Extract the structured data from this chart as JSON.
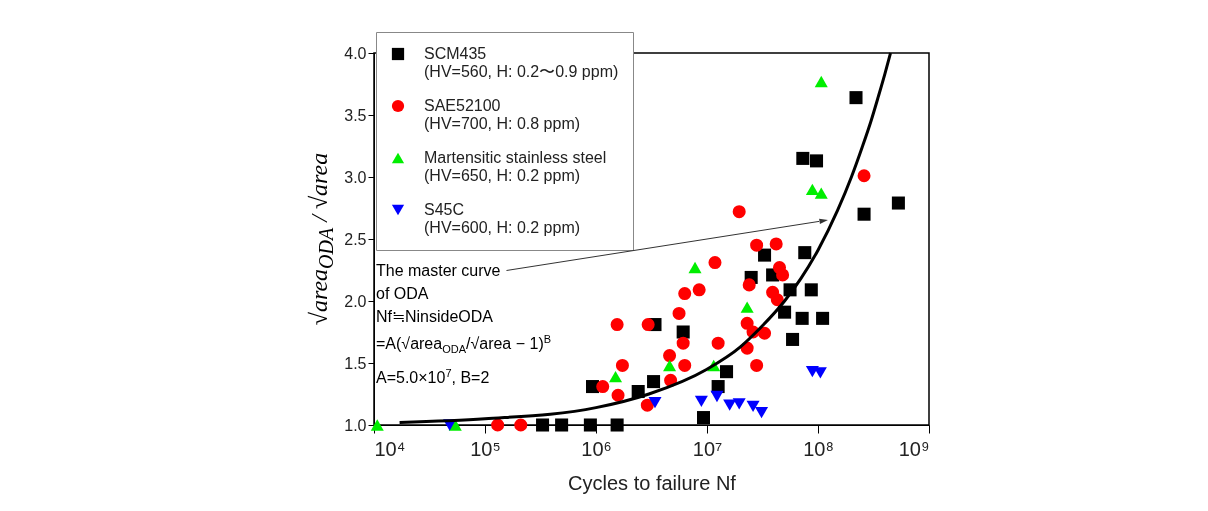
{
  "chart_data": {
    "type": "scatter",
    "xlabel": "Cycles to failure Nf",
    "ylabel": "√area$_{ODA}$ / √area",
    "log": "x",
    "xlim": [
      10000,
      1000000000
    ],
    "xticks": [
      {
        "value": 10000,
        "label": "10⁴"
      },
      {
        "value": 100000,
        "label": "10⁵"
      },
      {
        "value": 1000000,
        "label": "10⁶"
      },
      {
        "value": 10000000,
        "label": "10⁷"
      },
      {
        "value": 100000000,
        "label": "10⁸"
      },
      {
        "value": 1000000000,
        "label": "10⁹"
      }
    ],
    "ylim": [
      1.0,
      4.0
    ],
    "yticks": [
      {
        "value": 1.0,
        "label": "1.0"
      },
      {
        "value": 1.5,
        "label": "1.5"
      },
      {
        "value": 2.0,
        "label": "2.0"
      },
      {
        "value": 2.5,
        "label": "2.5"
      },
      {
        "value": 3.0,
        "label": "3.0"
      },
      {
        "value": 3.5,
        "label": "3.5"
      },
      {
        "value": 4.0,
        "label": "4.0"
      }
    ],
    "grid": false,
    "legend": "top left",
    "annotations": [
      "The master curve\nof ODA\nNf≒NinsideODA\n=A(√area$_{ODA}$/√area − 1)$^{B}$\nA=5.0×10$^{7}$, B=2"
    ],
    "series": [
      {
        "name": "SCM435\n(HV=560, H: 0.2〜0.9 ppm)",
        "color": "#000000",
        "marker": "square",
        "x": [
          330000,
          490000,
          890000,
          1550000,
          930000,
          2400000,
          3300000,
          3400000,
          6100000,
          9300000,
          12600000,
          15000000,
          25000000,
          33000000,
          39000000,
          56000000,
          50000000,
          59000000,
          72000000,
          87000000,
          110000000,
          76000000,
          220000000,
          73000000,
          97000000,
          530000000,
          260000000
        ],
        "values": [
          1.0,
          1.0,
          1.0,
          1.0,
          1.31,
          1.27,
          1.35,
          1.81,
          1.75,
          1.06,
          1.31,
          1.43,
          2.19,
          2.37,
          2.21,
          2.09,
          1.91,
          1.69,
          1.86,
          2.09,
          1.86,
          2.39,
          3.64,
          3.15,
          3.13,
          2.79,
          2.7
        ]
      },
      {
        "name": "SAE52100\n(HV=700, H: 0.8 ppm)",
        "color": "#ff0000",
        "marker": "circle",
        "x": [
          130000,
          210000,
          1150000,
          1550000,
          1730000,
          1580000,
          2950000,
          2900000,
          4700000,
          4600000,
          6300000,
          6100000,
          5600000,
          6300000,
          8500000,
          11800000,
          12600000,
          23000000,
          28000000,
          23000000,
          26000000,
          33000000,
          24000000,
          28000000,
          42000000,
          45000000,
          48000000,
          39000000,
          43000000,
          19500000,
          260000000
        ],
        "values": [
          1.0,
          1.0,
          1.31,
          1.81,
          1.48,
          1.24,
          1.81,
          1.16,
          1.36,
          1.56,
          1.48,
          1.66,
          1.9,
          2.06,
          2.09,
          2.31,
          1.66,
          1.62,
          1.48,
          1.82,
          1.75,
          1.74,
          2.13,
          2.45,
          2.46,
          2.27,
          2.21,
          2.07,
          2.01,
          2.72,
          3.01
        ]
      },
      {
        "name": "Martensitic stainless steel\n(HV=650, H: 0.2 ppm)",
        "color": "#00ee00",
        "marker": "triangle",
        "x": [
          10700,
          54000,
          1500000,
          4600000,
          7800000,
          11500000,
          23000000,
          89000000,
          107000000,
          107000000
        ],
        "values": [
          1.0,
          1.0,
          1.39,
          1.48,
          2.27,
          1.48,
          1.95,
          2.9,
          2.87,
          3.77
        ]
      },
      {
        "name": "S45C\n(HV=600, H: 0.2 ppm)",
        "color": "#0000ff",
        "marker": "triangle-down",
        "x": [
          48000,
          3400000,
          8900000,
          12300000,
          16000000,
          19500000,
          26000000,
          31000000,
          89000000,
          105000000
        ],
        "values": [
          1.0,
          1.18,
          1.19,
          1.23,
          1.16,
          1.17,
          1.15,
          1.1,
          1.43,
          1.42
        ]
      },
      {
        "type": "line",
        "color": "#000000",
        "marker": "none",
        "x": [
          17000,
          100000,
          1000000,
          3000000,
          10000000,
          20000000,
          30000000,
          50000000,
          70000000,
          100000000,
          150000000,
          200000000,
          250000000,
          300000000,
          350000000,
          400000000,
          450000000
        ],
        "values": [
          1.02,
          1.05,
          1.14,
          1.25,
          1.45,
          1.63,
          1.78,
          2.0,
          2.18,
          2.41,
          2.73,
          3.0,
          3.24,
          3.45,
          3.65,
          3.83,
          4.0
        ]
      }
    ]
  }
}
